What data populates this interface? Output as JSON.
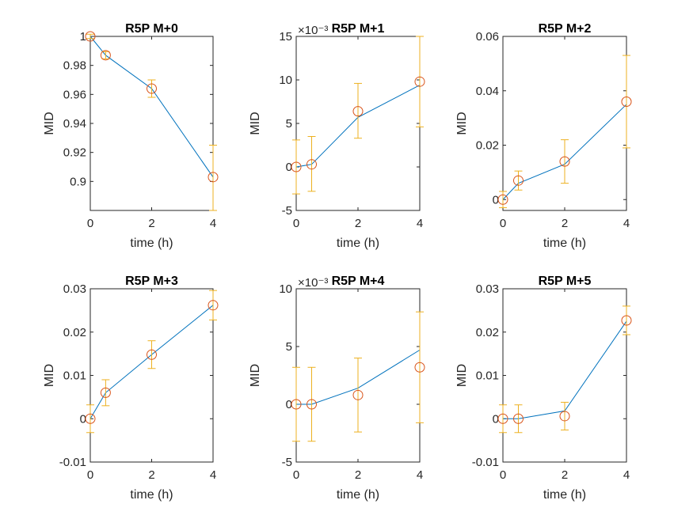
{
  "colors": {
    "line": "#0072bd",
    "marker": "#d95319",
    "errorbar": "#edb120",
    "axes": "#262626"
  },
  "chart_data": [
    {
      "type": "line",
      "title": "R5P M+0",
      "xlabel": "time (h)",
      "ylabel": "MID",
      "exponent_label": "",
      "xlim": [
        0,
        4
      ],
      "ylim": [
        0.88,
        1.0
      ],
      "xticks": [
        "0",
        "2",
        "4"
      ],
      "yticks": [
        "0.9",
        "0.92",
        "0.94",
        "0.96",
        "0.98",
        "1"
      ],
      "xtick_values": [
        0,
        2,
        4
      ],
      "ytick_values": [
        0.9,
        0.92,
        0.94,
        0.96,
        0.98,
        1.0
      ],
      "x": [
        0,
        0.5,
        2,
        4
      ],
      "line": [
        1.0,
        0.987,
        0.964,
        0.903
      ],
      "markers": [
        1.0,
        0.987,
        0.964,
        0.903
      ],
      "err_low": [
        0.9985,
        0.9845,
        0.958,
        0.88
      ],
      "err_high": [
        1.0015,
        0.9895,
        0.97,
        0.925
      ]
    },
    {
      "type": "line",
      "title": "R5P M+1",
      "xlabel": "time (h)",
      "ylabel": "MID",
      "exponent_label": "×10⁻³",
      "xlim": [
        0,
        4
      ],
      "ylim": [
        -5,
        15
      ],
      "xticks": [
        "0",
        "2",
        "4"
      ],
      "yticks": [
        "-5",
        "0",
        "5",
        "10",
        "15"
      ],
      "xtick_values": [
        0,
        2,
        4
      ],
      "ytick_values": [
        -5,
        0,
        5,
        10,
        15
      ],
      "x": [
        0,
        0.5,
        2,
        4
      ],
      "line": [
        0,
        0.3,
        5.7,
        9.4
      ],
      "markers": [
        0,
        0.3,
        6.4,
        9.8
      ],
      "err_low": [
        -3.1,
        -2.8,
        3.3,
        4.6
      ],
      "err_high": [
        3.1,
        3.5,
        9.6,
        15
      ]
    },
    {
      "type": "line",
      "title": "R5P M+2",
      "xlabel": "time (h)",
      "ylabel": "MID",
      "exponent_label": "",
      "xlim": [
        0,
        4
      ],
      "ylim": [
        -0.004,
        0.06
      ],
      "xticks": [
        "0",
        "2",
        "4"
      ],
      "yticks": [
        "0",
        "0.02",
        "0.04",
        "0.06"
      ],
      "xtick_values": [
        0,
        2,
        4
      ],
      "ytick_values": [
        0,
        0.02,
        0.04,
        0.06
      ],
      "x": [
        0,
        0.5,
        2,
        4
      ],
      "line": [
        0,
        0.006,
        0.013,
        0.035
      ],
      "markers": [
        0,
        0.007,
        0.014,
        0.036
      ],
      "err_low": [
        -0.003,
        0.0035,
        0.006,
        0.019
      ],
      "err_high": [
        0.003,
        0.0105,
        0.022,
        0.053
      ]
    },
    {
      "type": "line",
      "title": "R5P M+3",
      "xlabel": "time (h)",
      "ylabel": "MID",
      "exponent_label": "",
      "xlim": [
        0,
        4
      ],
      "ylim": [
        -0.01,
        0.03
      ],
      "xticks": [
        "0",
        "2",
        "4"
      ],
      "yticks": [
        "-0.01",
        "0",
        "0.01",
        "0.02",
        "0.03"
      ],
      "xtick_values": [
        0,
        2,
        4
      ],
      "ytick_values": [
        -0.01,
        0,
        0.01,
        0.02,
        0.03
      ],
      "x": [
        0,
        0.5,
        2,
        4
      ],
      "line": [
        0,
        0.006,
        0.0148,
        0.0262
      ],
      "markers": [
        0,
        0.006,
        0.0148,
        0.0262
      ],
      "err_low": [
        -0.0032,
        0.003,
        0.0116,
        0.0228
      ],
      "err_high": [
        0.0032,
        0.009,
        0.018,
        0.0296
      ]
    },
    {
      "type": "line",
      "title": "R5P M+4",
      "xlabel": "time (h)",
      "ylabel": "MID",
      "exponent_label": "×10⁻³",
      "xlim": [
        0,
        4
      ],
      "ylim": [
        -5,
        10
      ],
      "xticks": [
        "0",
        "2",
        "4"
      ],
      "yticks": [
        "-5",
        "0",
        "5",
        "10"
      ],
      "xtick_values": [
        0,
        2,
        4
      ],
      "ytick_values": [
        -5,
        0,
        5,
        10
      ],
      "x": [
        0,
        0.5,
        2,
        4
      ],
      "line": [
        0,
        0,
        1.4,
        4.7
      ],
      "markers": [
        0,
        0,
        0.8,
        3.2
      ],
      "err_low": [
        -3.2,
        -3.2,
        -2.4,
        -1.6
      ],
      "err_high": [
        3.2,
        3.2,
        4.0,
        8.0
      ]
    },
    {
      "type": "line",
      "title": "R5P M+5",
      "xlabel": "time (h)",
      "ylabel": "MID",
      "exponent_label": "",
      "xlim": [
        0,
        4
      ],
      "ylim": [
        -0.01,
        0.03
      ],
      "xticks": [
        "0",
        "2",
        "4"
      ],
      "yticks": [
        "-0.01",
        "0",
        "0.01",
        "0.02",
        "0.03"
      ],
      "xtick_values": [
        0,
        2,
        4
      ],
      "ytick_values": [
        -0.01,
        0,
        0.01,
        0.02,
        0.03
      ],
      "x": [
        0,
        0.5,
        2,
        4
      ],
      "line": [
        0,
        0,
        0.0018,
        0.0225
      ],
      "markers": [
        0,
        0,
        0.0006,
        0.0227
      ],
      "err_low": [
        -0.0032,
        -0.0032,
        -0.0026,
        0.0194
      ],
      "err_high": [
        0.0032,
        0.0032,
        0.0038,
        0.026
      ]
    }
  ]
}
